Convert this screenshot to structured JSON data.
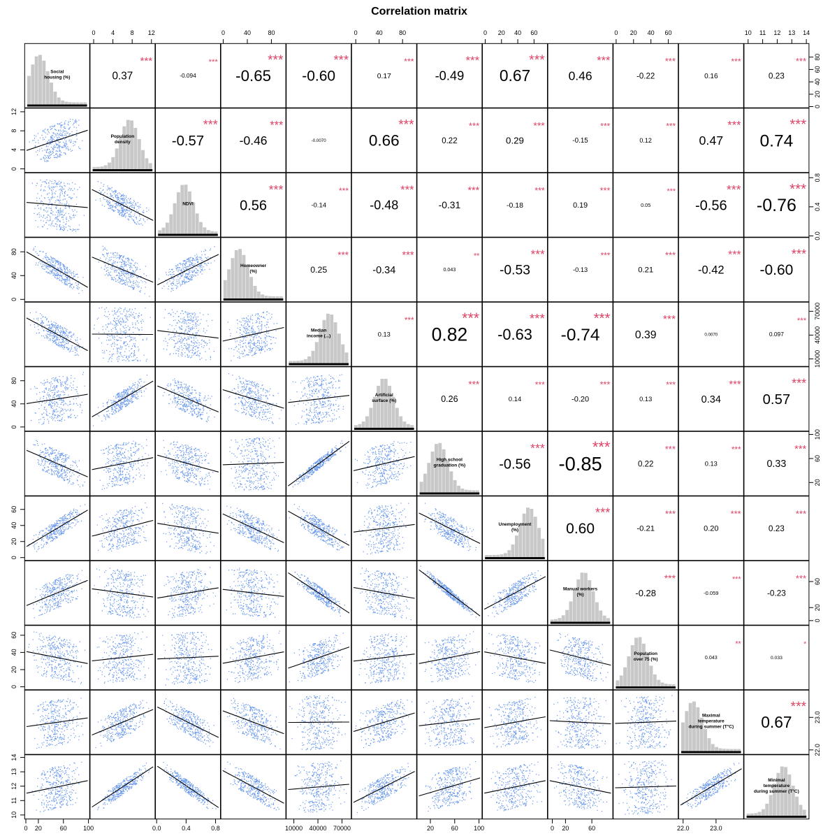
{
  "chart_data": {
    "type": "scatter-matrix",
    "title": "Correlation matrix",
    "variables": [
      {
        "label": [
          "Social",
          "housing (%)"
        ],
        "range": [
          0,
          100
        ]
      },
      {
        "label": [
          "Population",
          "density"
        ],
        "range": [
          -0.5,
          12.5
        ]
      },
      {
        "label": [
          "NDVI"
        ],
        "range": [
          0,
          0.85
        ]
      },
      {
        "label": [
          "Homeowner",
          "(%)"
        ],
        "range": [
          -2,
          102
        ]
      },
      {
        "label": [
          "Median",
          "income (...)"
        ],
        "range": [
          2000,
          80000
        ]
      },
      {
        "label": [
          "Artificial",
          "surface (%)"
        ],
        "range": [
          -5,
          102
        ]
      },
      {
        "label": [
          "High school",
          "graduation (%)"
        ],
        "range": [
          0,
          103
        ]
      },
      {
        "label": [
          "Unemployment",
          "(%)"
        ],
        "range": [
          -2,
          75
        ]
      },
      {
        "label": [
          "Manual workers",
          "(%)"
        ],
        "range": [
          -5,
          90
        ]
      },
      {
        "label": [
          "Population",
          "over 75 (%)"
        ],
        "range": [
          -2,
          70
        ]
      },
      {
        "label": [
          "Maximal",
          "temperature",
          "during summer (T°C)"
        ],
        "range": [
          21.9,
          23.8
        ]
      },
      {
        "label": [
          "Minimal",
          "temperature",
          "during summer (T°C)"
        ],
        "range": [
          9.8,
          14.1
        ]
      }
    ],
    "correlations": [
      {
        "i": 0,
        "j": 1,
        "value": "0.37",
        "stars": "***"
      },
      {
        "i": 0,
        "j": 2,
        "value": "-0.094",
        "stars": "***"
      },
      {
        "i": 0,
        "j": 3,
        "value": "-0.65",
        "stars": "***"
      },
      {
        "i": 0,
        "j": 4,
        "value": "-0.60",
        "stars": "***"
      },
      {
        "i": 0,
        "j": 5,
        "value": "0.17",
        "stars": "***"
      },
      {
        "i": 0,
        "j": 6,
        "value": "-0.49",
        "stars": "***"
      },
      {
        "i": 0,
        "j": 7,
        "value": "0.67",
        "stars": "***"
      },
      {
        "i": 0,
        "j": 8,
        "value": "0.46",
        "stars": "***"
      },
      {
        "i": 0,
        "j": 9,
        "value": "-0.22",
        "stars": "***"
      },
      {
        "i": 0,
        "j": 10,
        "value": "0.16",
        "stars": "***"
      },
      {
        "i": 0,
        "j": 11,
        "value": "0.23",
        "stars": "***"
      },
      {
        "i": 1,
        "j": 2,
        "value": "-0.57",
        "stars": "***"
      },
      {
        "i": 1,
        "j": 3,
        "value": "-0.46",
        "stars": "***"
      },
      {
        "i": 1,
        "j": 4,
        "value": "-0.0070",
        "stars": ""
      },
      {
        "i": 1,
        "j": 5,
        "value": "0.66",
        "stars": "***"
      },
      {
        "i": 1,
        "j": 6,
        "value": "0.22",
        "stars": "***"
      },
      {
        "i": 1,
        "j": 7,
        "value": "0.29",
        "stars": "***"
      },
      {
        "i": 1,
        "j": 8,
        "value": "-0.15",
        "stars": "***"
      },
      {
        "i": 1,
        "j": 9,
        "value": "0.12",
        "stars": "***"
      },
      {
        "i": 1,
        "j": 10,
        "value": "0.47",
        "stars": "***"
      },
      {
        "i": 1,
        "j": 11,
        "value": "0.74",
        "stars": "***"
      },
      {
        "i": 2,
        "j": 3,
        "value": "0.56",
        "stars": "***"
      },
      {
        "i": 2,
        "j": 4,
        "value": "-0.14",
        "stars": "***"
      },
      {
        "i": 2,
        "j": 5,
        "value": "-0.48",
        "stars": "***"
      },
      {
        "i": 2,
        "j": 6,
        "value": "-0.31",
        "stars": "***"
      },
      {
        "i": 2,
        "j": 7,
        "value": "-0.18",
        "stars": "***"
      },
      {
        "i": 2,
        "j": 8,
        "value": "0.19",
        "stars": "***"
      },
      {
        "i": 2,
        "j": 9,
        "value": "0.05",
        "stars": "***"
      },
      {
        "i": 2,
        "j": 10,
        "value": "-0.56",
        "stars": "***"
      },
      {
        "i": 2,
        "j": 11,
        "value": "-0.76",
        "stars": "***"
      },
      {
        "i": 3,
        "j": 4,
        "value": "0.25",
        "stars": "***"
      },
      {
        "i": 3,
        "j": 5,
        "value": "-0.34",
        "stars": "***"
      },
      {
        "i": 3,
        "j": 6,
        "value": "0.043",
        "stars": "**"
      },
      {
        "i": 3,
        "j": 7,
        "value": "-0.53",
        "stars": "***"
      },
      {
        "i": 3,
        "j": 8,
        "value": "-0.13",
        "stars": "***"
      },
      {
        "i": 3,
        "j": 9,
        "value": "0.21",
        "stars": "***"
      },
      {
        "i": 3,
        "j": 10,
        "value": "-0.42",
        "stars": "***"
      },
      {
        "i": 3,
        "j": 11,
        "value": "-0.60",
        "stars": "***"
      },
      {
        "i": 4,
        "j": 5,
        "value": "0.13",
        "stars": "***"
      },
      {
        "i": 4,
        "j": 6,
        "value": "0.82",
        "stars": "***"
      },
      {
        "i": 4,
        "j": 7,
        "value": "-0.63",
        "stars": "***"
      },
      {
        "i": 4,
        "j": 8,
        "value": "-0.74",
        "stars": "***"
      },
      {
        "i": 4,
        "j": 9,
        "value": "0.39",
        "stars": "***"
      },
      {
        "i": 4,
        "j": 10,
        "value": "0.0070",
        "stars": ""
      },
      {
        "i": 4,
        "j": 11,
        "value": "0.097",
        "stars": "***"
      },
      {
        "i": 5,
        "j": 6,
        "value": "0.26",
        "stars": "***"
      },
      {
        "i": 5,
        "j": 7,
        "value": "0.14",
        "stars": "***"
      },
      {
        "i": 5,
        "j": 8,
        "value": "-0.20",
        "stars": "***"
      },
      {
        "i": 5,
        "j": 9,
        "value": "0.13",
        "stars": "***"
      },
      {
        "i": 5,
        "j": 10,
        "value": "0.34",
        "stars": "***"
      },
      {
        "i": 5,
        "j": 11,
        "value": "0.57",
        "stars": "***"
      },
      {
        "i": 6,
        "j": 7,
        "value": "-0.56",
        "stars": "***"
      },
      {
        "i": 6,
        "j": 8,
        "value": "-0.85",
        "stars": "***"
      },
      {
        "i": 6,
        "j": 9,
        "value": "0.22",
        "stars": "***"
      },
      {
        "i": 6,
        "j": 10,
        "value": "0.13",
        "stars": "***"
      },
      {
        "i": 6,
        "j": 11,
        "value": "0.33",
        "stars": "***"
      },
      {
        "i": 7,
        "j": 8,
        "value": "0.60",
        "stars": "***"
      },
      {
        "i": 7,
        "j": 9,
        "value": "-0.21",
        "stars": "***"
      },
      {
        "i": 7,
        "j": 10,
        "value": "0.20",
        "stars": "***"
      },
      {
        "i": 7,
        "j": 11,
        "value": "0.23",
        "stars": "***"
      },
      {
        "i": 8,
        "j": 9,
        "value": "-0.28",
        "stars": "***"
      },
      {
        "i": 8,
        "j": 10,
        "value": "-0.059",
        "stars": "***"
      },
      {
        "i": 8,
        "j": 11,
        "value": "-0.23",
        "stars": "***"
      },
      {
        "i": 9,
        "j": 10,
        "value": "0.043",
        "stars": "**"
      },
      {
        "i": 9,
        "j": 11,
        "value": "0.033",
        "stars": "*"
      },
      {
        "i": 10,
        "j": 11,
        "value": "0.67",
        "stars": "***"
      }
    ],
    "axis_ticks": {
      "top": [
        {
          "var": 1,
          "ticks": [
            0,
            4,
            8,
            12
          ]
        },
        {
          "var": 3,
          "ticks": [
            0,
            40,
            80
          ]
        },
        {
          "var": 5,
          "ticks": [
            0,
            40,
            80
          ]
        },
        {
          "var": 7,
          "ticks": [
            0,
            20,
            40,
            60
          ]
        },
        {
          "var": 9,
          "ticks": [
            0,
            20,
            40,
            60
          ]
        },
        {
          "var": 11,
          "ticks": [
            10,
            11,
            12,
            13,
            14
          ]
        }
      ],
      "bottom": [
        {
          "var": 0,
          "ticks": [
            0,
            20,
            60,
            100
          ]
        },
        {
          "var": 2,
          "ticks": [
            0.0,
            0.4,
            0.8
          ],
          "labels": [
            "0.0",
            "0.4",
            "0.8"
          ]
        },
        {
          "var": 4,
          "ticks": [
            10000,
            40000,
            70000
          ]
        },
        {
          "var": 6,
          "ticks": [
            20,
            60,
            100
          ]
        },
        {
          "var": 8,
          "ticks": [
            0,
            20,
            60
          ]
        },
        {
          "var": 10,
          "ticks": [
            22.0,
            23.0
          ],
          "labels": [
            "22.0",
            "23.0"
          ]
        }
      ],
      "left": [
        {
          "var": 1,
          "ticks": [
            0,
            4,
            8,
            12
          ]
        },
        {
          "var": 3,
          "ticks": [
            0,
            40,
            80
          ]
        },
        {
          "var": 5,
          "ticks": [
            0,
            40,
            80
          ]
        },
        {
          "var": 7,
          "ticks": [
            0,
            20,
            40,
            60
          ]
        },
        {
          "var": 9,
          "ticks": [
            0,
            20,
            40,
            60
          ]
        },
        {
          "var": 11,
          "ticks": [
            10,
            11,
            12,
            13,
            14
          ]
        }
      ],
      "right": [
        {
          "var": 0,
          "ticks": [
            0,
            20,
            40,
            60,
            80
          ]
        },
        {
          "var": 2,
          "ticks": [
            0.0,
            0.4,
            0.8
          ],
          "labels": [
            "0.0",
            "0.4",
            "0.8"
          ]
        },
        {
          "var": 4,
          "ticks": [
            10000,
            40000,
            70000
          ]
        },
        {
          "var": 6,
          "ticks": [
            20,
            60,
            100
          ]
        },
        {
          "var": 8,
          "ticks": [
            0,
            20,
            60
          ]
        },
        {
          "var": 10,
          "ticks": [
            22.0,
            23.0
          ],
          "labels": [
            "22.0",
            "23.0"
          ]
        }
      ]
    },
    "colors": {
      "points": "#6495ED",
      "hist": "#c8c8c8",
      "smooth": "#000000",
      "stars": "#dd4466"
    }
  }
}
